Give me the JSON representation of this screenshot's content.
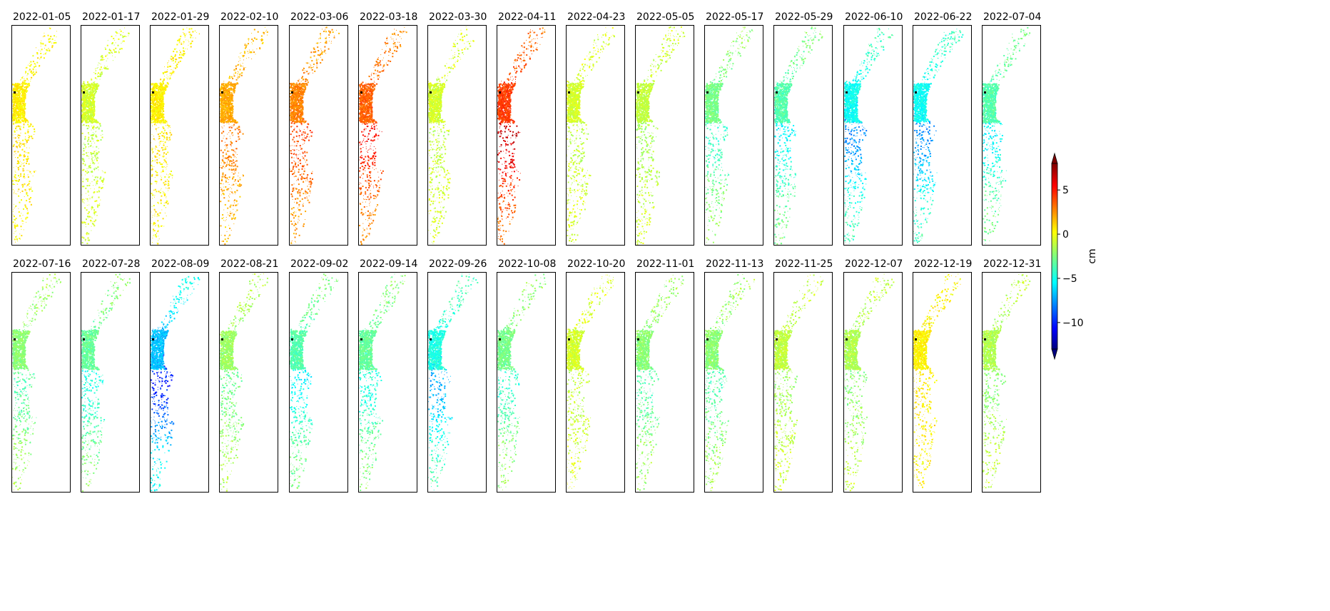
{
  "chart_data": {
    "type": "heatmap",
    "colormap": "jet",
    "colorbar": {
      "label": "cm",
      "ticks": [
        5,
        0,
        -5,
        -10
      ],
      "tick_labels": [
        "5",
        "0",
        "−5",
        "−10"
      ],
      "range": [
        -13,
        8
      ],
      "extend": "both"
    },
    "panels": [
      {
        "date": "2022-01-05",
        "mean_displacement_cm": 0.5
      },
      {
        "date": "2022-01-17",
        "mean_displacement_cm": -1.0
      },
      {
        "date": "2022-01-29",
        "mean_displacement_cm": 0.5
      },
      {
        "date": "2022-02-10",
        "mean_displacement_cm": 2.5
      },
      {
        "date": "2022-03-06",
        "mean_displacement_cm": 3.5
      },
      {
        "date": "2022-03-18",
        "mean_displacement_cm": 4.5
      },
      {
        "date": "2022-03-30",
        "mean_displacement_cm": -1.0
      },
      {
        "date": "2022-04-11",
        "mean_displacement_cm": 5.5
      },
      {
        "date": "2022-04-23",
        "mean_displacement_cm": -1.0
      },
      {
        "date": "2022-05-05",
        "mean_displacement_cm": -1.5
      },
      {
        "date": "2022-05-17",
        "mean_displacement_cm": -3.5
      },
      {
        "date": "2022-05-29",
        "mean_displacement_cm": -4.5
      },
      {
        "date": "2022-06-10",
        "mean_displacement_cm": -6.5
      },
      {
        "date": "2022-06-22",
        "mean_displacement_cm": -6.5
      },
      {
        "date": "2022-07-04",
        "mean_displacement_cm": -4.5
      },
      {
        "date": "2022-07-16",
        "mean_displacement_cm": -3.0
      },
      {
        "date": "2022-07-28",
        "mean_displacement_cm": -4.0
      },
      {
        "date": "2022-08-09",
        "mean_displacement_cm": -8.5
      },
      {
        "date": "2022-08-21",
        "mean_displacement_cm": -2.5
      },
      {
        "date": "2022-09-02",
        "mean_displacement_cm": -4.5
      },
      {
        "date": "2022-09-14",
        "mean_displacement_cm": -4.0
      },
      {
        "date": "2022-09-26",
        "mean_displacement_cm": -6.0
      },
      {
        "date": "2022-10-08",
        "mean_displacement_cm": -3.5
      },
      {
        "date": "2022-10-20",
        "mean_displacement_cm": -1.0
      },
      {
        "date": "2022-11-01",
        "mean_displacement_cm": -3.0
      },
      {
        "date": "2022-11-13",
        "mean_displacement_cm": -3.0
      },
      {
        "date": "2022-11-25",
        "mean_displacement_cm": -1.5
      },
      {
        "date": "2022-12-07",
        "mean_displacement_cm": -2.0
      },
      {
        "date": "2022-12-19",
        "mean_displacement_cm": 0.5
      },
      {
        "date": "2022-12-31",
        "mean_displacement_cm": -2.0
      }
    ]
  }
}
